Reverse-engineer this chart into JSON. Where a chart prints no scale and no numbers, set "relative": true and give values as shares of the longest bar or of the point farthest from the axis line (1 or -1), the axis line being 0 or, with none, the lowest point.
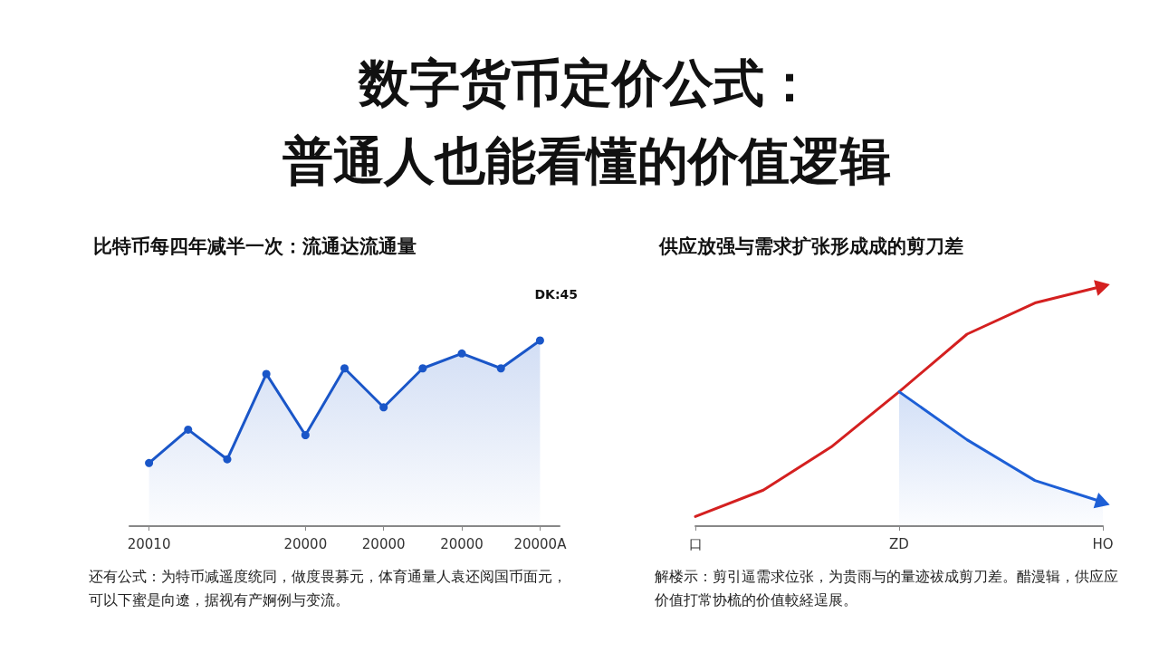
{
  "chart_data": [
    {
      "type": "other",
      "title": "数字货币定价公式：",
      "subtitle": "普通人也能看懂的价值逻辑"
    },
    {
      "type": "area",
      "title": "比特币每四年减半一次：流通达流通量",
      "relative": true,
      "categories": [
        "20010",
        null,
        null,
        null,
        "20000",
        null,
        "20000",
        null,
        "20000",
        null,
        "20000A"
      ],
      "values": [
        0.34,
        0.52,
        0.36,
        0.82,
        0.49,
        0.85,
        0.64,
        0.85,
        0.93,
        0.85,
        1
      ],
      "color": "#1a56c8",
      "marker": "circle",
      "annotations": [
        "DK:45",
        "还有公式：为特币减遥度统同，做度畏募元，体育通量人袁还阅国币面元，可以下蜜是向遼，据视有产婀例与变流。"
      ]
    },
    {
      "type": "line",
      "title": "供应放强与需求扩张形成成的剪刀差",
      "relative": true,
      "categories": [
        "口",
        null,
        null,
        "ZD",
        null,
        null,
        "HO"
      ],
      "series": [
        {
          "type": "line",
          "color": "#d42020",
          "values": [
            0.04,
            0.15,
            0.33,
            0.56,
            0.8,
            0.93,
            1
          ]
        },
        {
          "type": "area",
          "color": "#1d5fd6",
          "values": [
            null,
            null,
            null,
            0.56,
            0.36,
            0.19,
            0.1
          ]
        }
      ],
      "annotations": [
        "解楼示：剪引逼需求位张，为贵雨与的量迹祓成剪刀差。醋漫辑，供应应价值打常协梳的价值較経逞展。"
      ]
    }
  ]
}
